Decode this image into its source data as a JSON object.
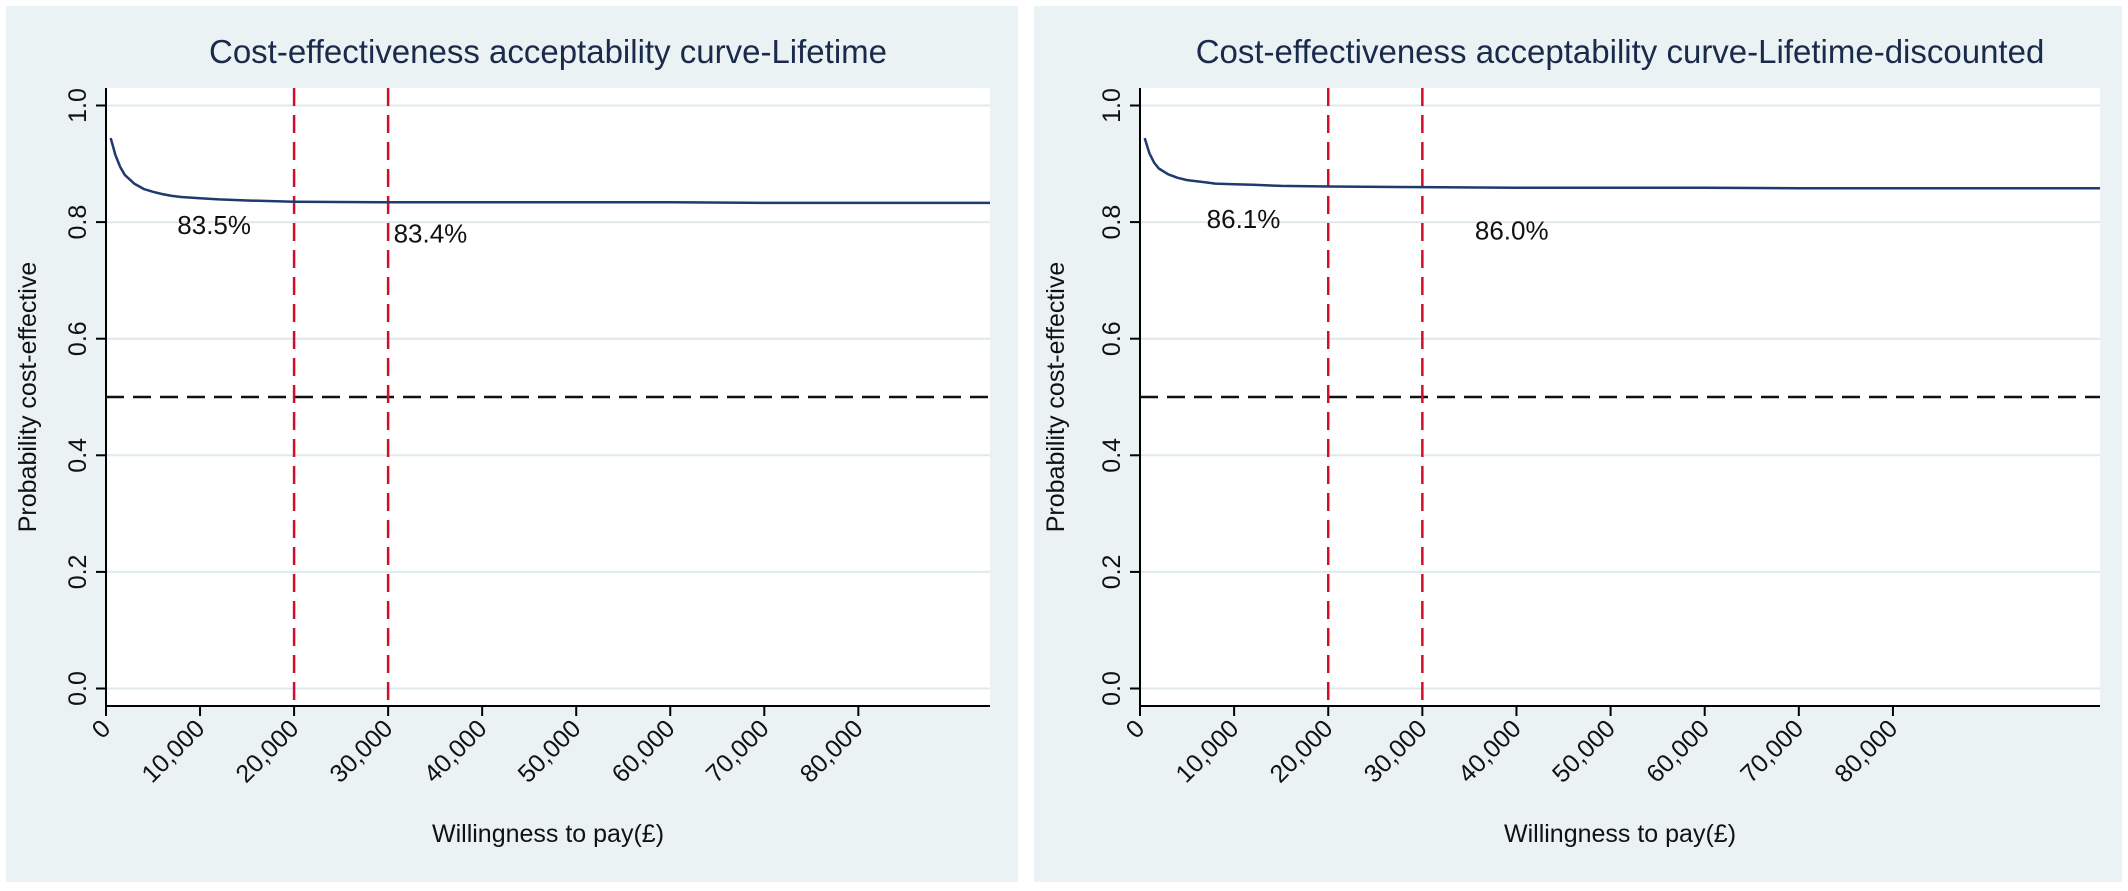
{
  "colors": {
    "panel_background": "#eaf2f3",
    "plot_background": "#ffffff",
    "grid": "#dfe9ec",
    "curve": "#1f3a6e",
    "wtp_threshold_lines": "#d0102a",
    "half_probability_line": "#111111"
  },
  "chart_data": [
    {
      "type": "line",
      "title": "Cost-effectiveness acceptability curve-Lifetime",
      "xlabel": "Willingness to pay(£)",
      "ylabel": "Probability cost-effective",
      "xlim": [
        0,
        94000
      ],
      "ylim": [
        -0.03,
        1.03
      ],
      "x_ticks": [
        0,
        10000,
        20000,
        30000,
        40000,
        50000,
        60000,
        70000,
        80000
      ],
      "x_tick_labels": [
        "0",
        "10,000",
        "20,000",
        "30,000",
        "40,000",
        "50,000",
        "60,000",
        "70,000",
        "80,000"
      ],
      "y_ticks": [
        0,
        0.2,
        0.4,
        0.6,
        0.8,
        1.0
      ],
      "y_tick_labels": [
        "0.0",
        "0.2",
        "0.4",
        "0.6",
        "0.8",
        "1.0"
      ],
      "grid": true,
      "legend": "none",
      "series": [
        {
          "x": [
            500,
            1000,
            1500,
            2000,
            3000,
            4000,
            5000,
            6000,
            7000,
            8000,
            10000,
            12000,
            15000,
            20000,
            30000,
            40000,
            50000,
            60000,
            70000,
            80000,
            94000
          ],
          "values": [
            0.944,
            0.915,
            0.895,
            0.881,
            0.866,
            0.857,
            0.852,
            0.848,
            0.845,
            0.843,
            0.841,
            0.839,
            0.837,
            0.835,
            0.834,
            0.834,
            0.834,
            0.834,
            0.833,
            0.833,
            0.833
          ]
        }
      ],
      "vertical_lines": [
        20000,
        30000
      ],
      "horizontal_lines": [
        0.5
      ],
      "annotations": [
        {
          "text": "83.5%",
          "x": 11500,
          "y": 0.78
        },
        {
          "text": "83.4%",
          "x": 34500,
          "y": 0.765
        }
      ]
    },
    {
      "type": "line",
      "title": "Cost-effectiveness acceptability curve-Lifetime-discounted",
      "xlabel": "Willingness to pay(£)",
      "ylabel": "Probability cost-effective",
      "xlim": [
        0,
        102000
      ],
      "ylim": [
        -0.03,
        1.03
      ],
      "x_ticks": [
        0,
        10000,
        20000,
        30000,
        40000,
        50000,
        60000,
        70000,
        80000
      ],
      "x_tick_labels": [
        "0",
        "10,000",
        "20,000",
        "30,000",
        "40,000",
        "50,000",
        "60,000",
        "70,000",
        "80,000"
      ],
      "y_ticks": [
        0,
        0.2,
        0.4,
        0.6,
        0.8,
        1.0
      ],
      "y_tick_labels": [
        "0.0",
        "0.2",
        "0.4",
        "0.6",
        "0.8",
        "1.0"
      ],
      "grid": true,
      "legend": "none",
      "series": [
        {
          "x": [
            500,
            1000,
            1500,
            2000,
            3000,
            4000,
            5000,
            6000,
            7000,
            8000,
            10000,
            12000,
            15000,
            20000,
            30000,
            40000,
            50000,
            60000,
            70000,
            80000,
            102000
          ],
          "values": [
            0.944,
            0.918,
            0.902,
            0.892,
            0.882,
            0.876,
            0.872,
            0.87,
            0.868,
            0.866,
            0.865,
            0.864,
            0.862,
            0.861,
            0.86,
            0.859,
            0.859,
            0.859,
            0.858,
            0.858,
            0.858
          ]
        }
      ],
      "vertical_lines": [
        20000,
        30000
      ],
      "horizontal_lines": [
        0.5
      ],
      "annotations": [
        {
          "text": "86.1%",
          "x": 11000,
          "y": 0.79
        },
        {
          "text": "86.0%",
          "x": 39500,
          "y": 0.77
        }
      ]
    }
  ]
}
